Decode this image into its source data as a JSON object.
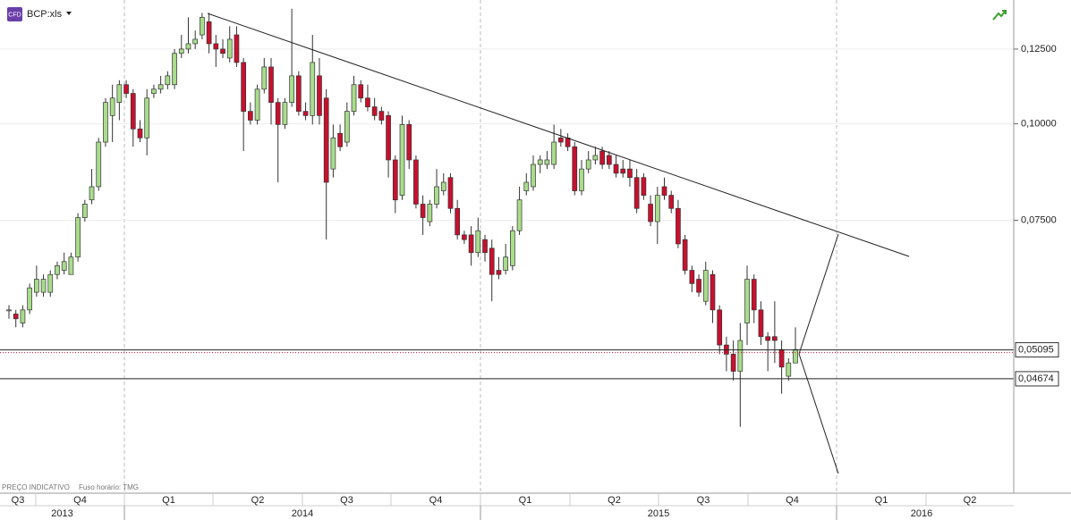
{
  "chart_data": {
    "type": "candlestick",
    "title": "BCP:xls",
    "badge": "CFD",
    "footer": [
      "PREÇO INDICATIVO",
      "Fuso horário: TMG"
    ],
    "log_scale": true,
    "grid": true,
    "ylim": [
      0.0334,
      0.1447
    ],
    "yticks": [
      {
        "value": 0.125,
        "label": "0,12500"
      },
      {
        "value": 0.1,
        "label": "0,10000"
      },
      {
        "value": 0.075,
        "label": "0,07500"
      }
    ],
    "price_lines": [
      {
        "value": 0.05095,
        "label": "0,05095"
      },
      {
        "value": 0.04674,
        "label": "0,04674"
      }
    ],
    "quarters": [
      "Q3",
      "Q4",
      "Q1",
      "Q2",
      "Q3",
      "Q4",
      "Q1",
      "Q2",
      "Q3",
      "Q4",
      "Q1",
      "Q2"
    ],
    "years": [
      "2013",
      "2014",
      "2015",
      "2016"
    ],
    "colors": {
      "up": "#a9dc8c",
      "down": "#c8102e",
      "outline": "#333333"
    },
    "candles": {
      "open": [
        0.0574,
        0.0567,
        0.0552,
        0.0574,
        0.0605,
        0.0605,
        0.0605,
        0.0638,
        0.0646,
        0.0638,
        0.0672,
        0.0756,
        0.0797,
        0.0829,
        0.0947,
        0.1025,
        0.1066,
        0.1124,
        0.1095,
        0.0985,
        0.0959,
        0.1095,
        0.1109,
        0.1124,
        0.1124,
        0.1234,
        0.125,
        0.127,
        0.1304,
        0.1356,
        0.127,
        0.125,
        0.1217,
        0.1304,
        0.1201,
        0.1038,
        0.1011,
        0.1109,
        0.1185,
        0.1066,
        0.0998,
        0.1066,
        0.1154,
        0.1038,
        0.1025,
        0.1154,
        0.108,
        0.0874,
        0.0972,
        0.0947,
        0.1038,
        0.1124,
        0.108,
        0.1052,
        0.1038,
        0.1025,
        0.0898,
        0.0808,
        0.0998,
        0.0898,
        0.0787,
        0.0747,
        0.0787,
        0.0819,
        0.0852,
        0.0777,
        0.0718,
        0.0718,
        0.0681,
        0.0708,
        0.069,
        0.0646,
        0.0646,
        0.0655,
        0.0727,
        0.0819,
        0.0829,
        0.0886,
        0.0886,
        0.0886,
        0.0959,
        0.0959,
        0.0934,
        0.0819,
        0.0874,
        0.0898,
        0.0922,
        0.091,
        0.0886,
        0.0874,
        0.0874,
        0.0852,
        0.0852,
        0.0787,
        0.0747,
        0.0829,
        0.0808,
        0.0777,
        0.0708,
        0.0646,
        0.0629,
        0.0589,
        0.0638,
        0.0574,
        0.0517,
        0.0503,
        0.0478,
        0.0552,
        0.0629,
        0.0574,
        0.053,
        0.053,
        0.051,
        0.0471,
        0.049
      ],
      "high": [
        0.0582,
        0.0574,
        0.0582,
        0.0621,
        0.0655,
        0.0638,
        0.0646,
        0.0663,
        0.0681,
        0.0681,
        0.0766,
        0.0797,
        0.0874,
        0.0959,
        0.108,
        0.1124,
        0.1139,
        0.1139,
        0.1109,
        0.1011,
        0.1109,
        0.1124,
        0.1154,
        0.117,
        0.125,
        0.1304,
        0.1374,
        0.1321,
        0.1392,
        0.1392,
        0.1304,
        0.1287,
        0.1338,
        0.1338,
        0.1217,
        0.1066,
        0.1124,
        0.1217,
        0.1217,
        0.108,
        0.108,
        0.141,
        0.117,
        0.1066,
        0.1304,
        0.1217,
        0.1109,
        0.0998,
        0.0998,
        0.1066,
        0.1154,
        0.1139,
        0.1124,
        0.108,
        0.1052,
        0.1038,
        0.091,
        0.1025,
        0.1011,
        0.091,
        0.0808,
        0.0797,
        0.0874,
        0.0863,
        0.0863,
        0.0797,
        0.0727,
        0.0737,
        0.0756,
        0.0718,
        0.0708,
        0.0672,
        0.0699,
        0.0737,
        0.0829,
        0.0863,
        0.091,
        0.091,
        0.0922,
        0.0998,
        0.0985,
        0.0972,
        0.0947,
        0.0898,
        0.0922,
        0.0934,
        0.0934,
        0.0922,
        0.091,
        0.0898,
        0.0898,
        0.0874,
        0.0863,
        0.0808,
        0.0829,
        0.0852,
        0.0819,
        0.0797,
        0.0718,
        0.0655,
        0.0638,
        0.0663,
        0.0646,
        0.0582,
        0.053,
        0.0524,
        0.0552,
        0.0655,
        0.0638,
        0.0589,
        0.0537,
        0.0589,
        0.0524,
        0.0497,
        0.0545
      ],
      "low": [
        0.0559,
        0.0545,
        0.0545,
        0.0567,
        0.0597,
        0.0597,
        0.0597,
        0.0629,
        0.0638,
        0.0638,
        0.0663,
        0.0747,
        0.0787,
        0.0819,
        0.0934,
        0.0947,
        0.1011,
        0.108,
        0.0934,
        0.0947,
        0.091,
        0.108,
        0.1095,
        0.1109,
        0.1109,
        0.1217,
        0.1234,
        0.125,
        0.1287,
        0.1234,
        0.1185,
        0.1217,
        0.1201,
        0.1185,
        0.0922,
        0.0998,
        0.0998,
        0.1095,
        0.0998,
        0.084,
        0.0985,
        0.1052,
        0.1025,
        0.1011,
        0.0998,
        0.0998,
        0.0708,
        0.0852,
        0.0922,
        0.0934,
        0.1025,
        0.1066,
        0.1038,
        0.1011,
        0.0998,
        0.0852,
        0.0766,
        0.0797,
        0.0874,
        0.0777,
        0.0718,
        0.0737,
        0.0777,
        0.0808,
        0.0766,
        0.0708,
        0.0699,
        0.0655,
        0.0672,
        0.0663,
        0.0589,
        0.0629,
        0.0638,
        0.0646,
        0.0718,
        0.0808,
        0.0819,
        0.0863,
        0.0874,
        0.0874,
        0.0934,
        0.0922,
        0.0808,
        0.0808,
        0.0863,
        0.0886,
        0.0874,
        0.0874,
        0.0852,
        0.0852,
        0.0829,
        0.0766,
        0.0797,
        0.0737,
        0.0699,
        0.0797,
        0.0766,
        0.069,
        0.0638,
        0.0605,
        0.0597,
        0.0582,
        0.0552,
        0.0503,
        0.0478,
        0.0465,
        0.0405,
        0.0517,
        0.0552,
        0.0517,
        0.0478,
        0.049,
        0.0447,
        0.0465,
        0.049
      ],
      "close": [
        0.0574,
        0.0559,
        0.0574,
        0.0613,
        0.0629,
        0.0629,
        0.0638,
        0.0655,
        0.0663,
        0.0672,
        0.0756,
        0.0787,
        0.0829,
        0.0947,
        0.1066,
        0.108,
        0.1124,
        0.1095,
        0.0985,
        0.0959,
        0.108,
        0.1109,
        0.1124,
        0.1154,
        0.1234,
        0.125,
        0.127,
        0.1287,
        0.1374,
        0.127,
        0.125,
        0.1234,
        0.1287,
        0.1201,
        0.1038,
        0.1011,
        0.1109,
        0.1185,
        0.1066,
        0.0998,
        0.1066,
        0.1154,
        0.1038,
        0.1025,
        0.1201,
        0.1025,
        0.084,
        0.0959,
        0.0934,
        0.1038,
        0.1124,
        0.108,
        0.1052,
        0.1025,
        0.1011,
        0.0898,
        0.0797,
        0.0998,
        0.0898,
        0.0787,
        0.0756,
        0.0787,
        0.0829,
        0.084,
        0.0777,
        0.0718,
        0.0708,
        0.0681,
        0.0727,
        0.0681,
        0.0638,
        0.0638,
        0.0672,
        0.0727,
        0.0797,
        0.084,
        0.0886,
        0.0898,
        0.0898,
        0.0947,
        0.0947,
        0.0934,
        0.0819,
        0.0874,
        0.0898,
        0.091,
        0.0886,
        0.0886,
        0.0863,
        0.0863,
        0.0852,
        0.0777,
        0.0808,
        0.0747,
        0.0808,
        0.0808,
        0.0777,
        0.0699,
        0.0646,
        0.0621,
        0.0605,
        0.0646,
        0.0574,
        0.0517,
        0.0503,
        0.0478,
        0.0524,
        0.0629,
        0.0574,
        0.053,
        0.0524,
        0.0524,
        0.0484,
        0.049,
        0.051
      ]
    }
  }
}
